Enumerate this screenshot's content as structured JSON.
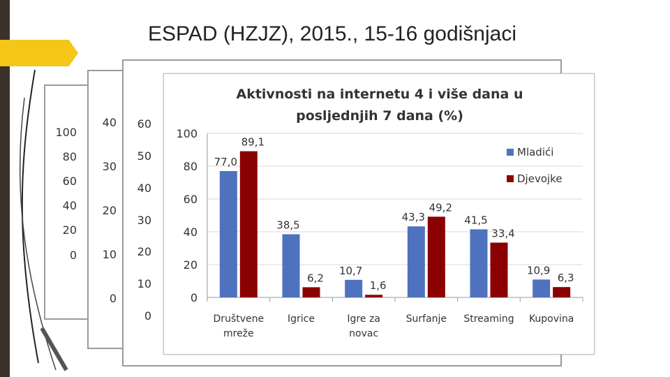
{
  "slide": {
    "title": "ESPAD (HZJZ), 2015., 15-16 godišnjaci"
  },
  "ghost_axes": {
    "panel1": [
      "100",
      "80",
      "60",
      "40",
      "20",
      "0"
    ],
    "panel2": [
      "40",
      "30",
      "20",
      "10",
      "0"
    ],
    "panel3": [
      "60",
      "50",
      "40",
      "30",
      "20",
      "10",
      "0"
    ]
  },
  "colors": {
    "mladici": "#4f72be",
    "djevojke": "#8b0000",
    "accent": "#f5c518"
  },
  "chart_data": {
    "type": "bar",
    "title_lines": [
      "Aktivnosti na internetu 4 i više dana u",
      "posljednjih 7 dana (%)"
    ],
    "categories": [
      [
        "Društvene",
        "mreže"
      ],
      [
        "Igrice"
      ],
      [
        "Igre za",
        "novac"
      ],
      [
        "Surfanje"
      ],
      [
        "Streaming"
      ],
      [
        "Kupovina"
      ]
    ],
    "series": [
      {
        "name": "Mladići",
        "values": [
          77.0,
          38.5,
          10.7,
          43.3,
          41.5,
          10.9
        ],
        "labels": [
          "77,0",
          "38,5",
          "10,7",
          "43,3",
          "41,5",
          "10,9"
        ]
      },
      {
        "name": "Djevojke",
        "values": [
          89.1,
          6.2,
          1.6,
          49.2,
          33.4,
          6.3
        ],
        "labels": [
          "89,1",
          "6,2",
          "1,6",
          "49,2",
          "33,4",
          "6,3"
        ]
      }
    ],
    "yticks": [
      0,
      20,
      40,
      60,
      80,
      100
    ],
    "ylim": [
      0,
      100
    ],
    "grid": true,
    "legend_position": "right"
  }
}
